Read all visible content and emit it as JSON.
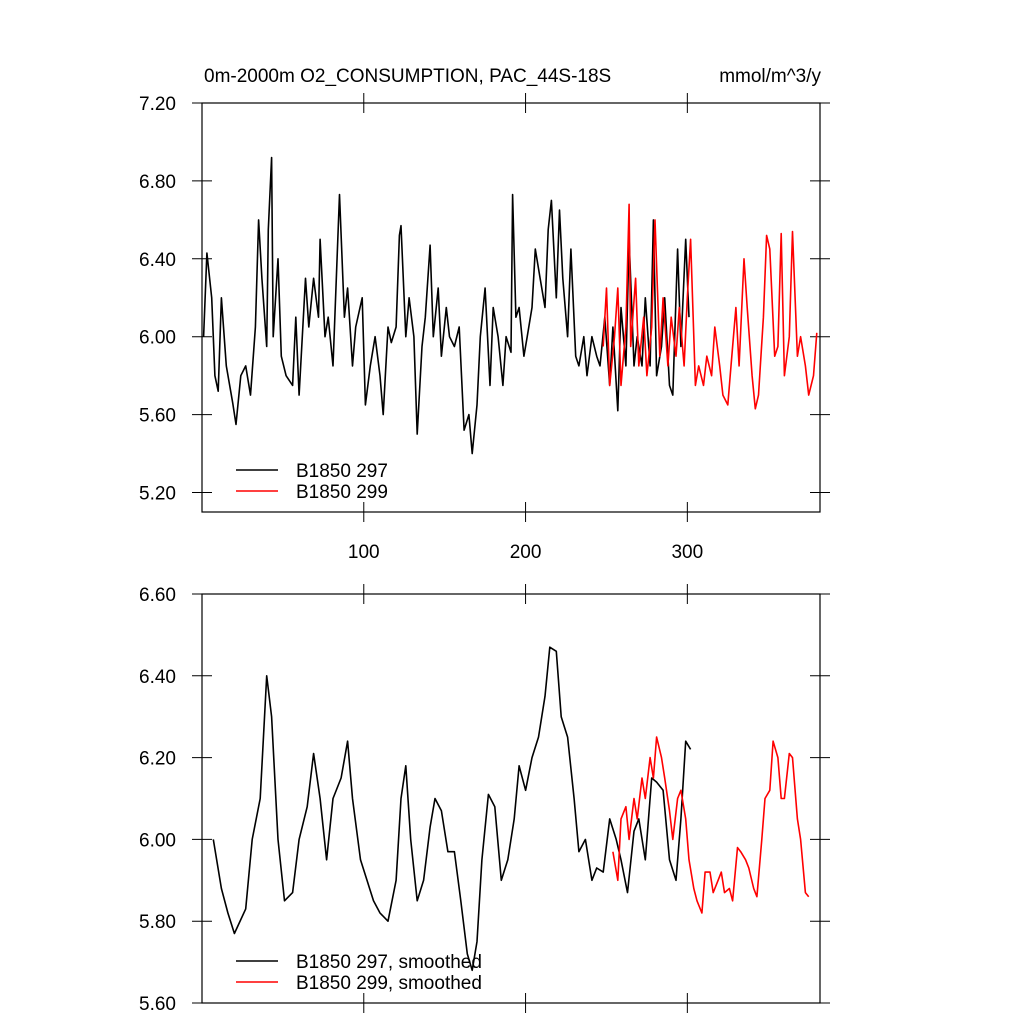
{
  "chart_data": [
    {
      "type": "line",
      "title": "0m-2000m O2_CONSUMPTION, PAC_44S-18S",
      "subtitle": "mmol/m^3/y",
      "xlim": [
        0,
        382
      ],
      "ylim": [
        5.1,
        7.2
      ],
      "xticks": [
        100,
        200,
        300
      ],
      "yticks": [
        {
          "value": 5.2,
          "label": "5.20"
        },
        {
          "value": 5.6,
          "label": "5.60"
        },
        {
          "value": 6.0,
          "label": "6.00"
        },
        {
          "value": 6.4,
          "label": "6.40"
        },
        {
          "value": 6.8,
          "label": "6.80"
        },
        {
          "value": 7.2,
          "label": "7.20"
        }
      ],
      "legend": "lower left",
      "series": [
        {
          "name": "B1850 297",
          "color": "#000000",
          "x": [
            1,
            3,
            6,
            8,
            10,
            12,
            15,
            19,
            21,
            24,
            27,
            30,
            33,
            35,
            37,
            40,
            41,
            43,
            44,
            47,
            49,
            52,
            56,
            58,
            60,
            64,
            66,
            69,
            72,
            73,
            76,
            78,
            81,
            85,
            88,
            90,
            93,
            95,
            99,
            101,
            104,
            107,
            110,
            112,
            115,
            117,
            120,
            122,
            123,
            126,
            128,
            131,
            133,
            136,
            138,
            141,
            143,
            146,
            148,
            151,
            153,
            156,
            159,
            162,
            165,
            167,
            170,
            172,
            175,
            178,
            180,
            183,
            186,
            188,
            191,
            192,
            194,
            196,
            199,
            201,
            204,
            206,
            209,
            212,
            214,
            216,
            219,
            221,
            223,
            226,
            228,
            231,
            233,
            236,
            238,
            241,
            244,
            246,
            249,
            252,
            254,
            257,
            259,
            262,
            264,
            267,
            269,
            272,
            274,
            277,
            279,
            281,
            284,
            286,
            289,
            291,
            294,
            296,
            299,
            301
          ],
          "values": [
            6.0,
            6.43,
            6.2,
            5.8,
            5.72,
            6.2,
            5.85,
            5.66,
            5.55,
            5.8,
            5.85,
            5.7,
            6.05,
            6.6,
            6.3,
            5.95,
            6.55,
            6.92,
            6.0,
            6.4,
            5.9,
            5.8,
            5.75,
            6.1,
            5.7,
            6.3,
            6.05,
            6.3,
            6.1,
            6.5,
            6.0,
            6.1,
            5.85,
            6.73,
            6.1,
            6.25,
            5.85,
            6.05,
            6.2,
            5.65,
            5.85,
            6.0,
            5.8,
            5.6,
            6.05,
            5.97,
            6.05,
            6.52,
            6.57,
            6.0,
            6.2,
            6.0,
            5.5,
            5.95,
            6.1,
            6.47,
            6.0,
            6.25,
            5.9,
            6.15,
            6.0,
            5.95,
            6.05,
            5.52,
            5.6,
            5.4,
            5.65,
            6.0,
            6.25,
            5.75,
            6.15,
            6.0,
            5.75,
            6.0,
            5.92,
            6.73,
            6.1,
            6.15,
            5.9,
            6.0,
            6.15,
            6.45,
            6.3,
            6.15,
            6.55,
            6.7,
            6.2,
            6.65,
            6.3,
            6.0,
            6.45,
            5.9,
            5.85,
            6.0,
            5.8,
            6.0,
            5.9,
            5.85,
            6.1,
            5.75,
            6.05,
            5.62,
            6.15,
            5.85,
            6.5,
            5.85,
            6.0,
            5.85,
            6.2,
            5.85,
            6.6,
            5.8,
            5.95,
            6.2,
            5.75,
            5.7,
            6.45,
            5.95,
            6.5,
            6.1
          ]
        },
        {
          "name": "B1850 299",
          "color": "#ff0000",
          "x": [
            248,
            250,
            252,
            255,
            257,
            259,
            262,
            264,
            265,
            268,
            270,
            273,
            275,
            278,
            280,
            283,
            285,
            288,
            290,
            293,
            295,
            298,
            300,
            302,
            305,
            307,
            310,
            312,
            315,
            317,
            320,
            322,
            325,
            327,
            330,
            332,
            335,
            337,
            340,
            342,
            344,
            347,
            349,
            351,
            354,
            356,
            358,
            360,
            363,
            365,
            368,
            370,
            373,
            375,
            378,
            380
          ],
          "values": [
            5.95,
            6.25,
            5.75,
            6.0,
            6.25,
            5.75,
            6.05,
            6.68,
            5.95,
            6.3,
            5.85,
            6.1,
            5.8,
            6.05,
            6.6,
            5.9,
            6.2,
            5.85,
            6.1,
            5.9,
            6.15,
            5.85,
            6.2,
            6.5,
            5.75,
            5.85,
            5.75,
            5.9,
            5.8,
            6.05,
            5.85,
            5.7,
            5.65,
            5.85,
            6.15,
            5.85,
            6.4,
            6.15,
            5.8,
            5.63,
            5.7,
            6.1,
            6.52,
            6.45,
            5.9,
            5.95,
            6.53,
            5.8,
            6.0,
            6.54,
            5.9,
            6.0,
            5.85,
            5.7,
            5.8,
            6.02
          ]
        }
      ]
    },
    {
      "type": "line",
      "xlim": [
        0,
        382
      ],
      "ylim": [
        5.6,
        6.6
      ],
      "xticks": [
        100,
        200,
        300
      ],
      "yticks": [
        {
          "value": 5.6,
          "label": "5.60"
        },
        {
          "value": 5.8,
          "label": "5.80"
        },
        {
          "value": 6.0,
          "label": "6.00"
        },
        {
          "value": 6.2,
          "label": "6.20"
        },
        {
          "value": 6.4,
          "label": "6.40"
        },
        {
          "value": 6.6,
          "label": "6.60"
        }
      ],
      "legend": "lower left",
      "series": [
        {
          "name": "B1850 297, smoothed",
          "color": "#000000",
          "x": [
            7,
            12,
            16,
            20,
            27,
            31,
            36,
            40,
            43,
            47,
            51,
            56,
            60,
            65,
            69,
            73,
            77,
            81,
            86,
            90,
            93,
            98,
            102,
            106,
            110,
            115,
            120,
            123,
            126,
            129,
            133,
            137,
            141,
            144,
            148,
            152,
            156,
            160,
            164,
            167,
            170,
            173,
            177,
            181,
            185,
            189,
            193,
            196,
            200,
            204,
            208,
            212,
            215,
            219,
            222,
            226,
            230,
            233,
            237,
            241,
            244,
            248,
            252,
            256,
            259,
            263,
            267,
            270,
            274,
            278,
            281,
            285,
            289,
            293,
            296,
            299,
            302
          ],
          "values": [
            6.0,
            5.88,
            5.82,
            5.77,
            5.83,
            6.0,
            6.1,
            6.4,
            6.3,
            6.0,
            5.85,
            5.87,
            6.0,
            6.08,
            6.21,
            6.1,
            5.95,
            6.1,
            6.15,
            6.24,
            6.1,
            5.95,
            5.9,
            5.85,
            5.82,
            5.8,
            5.9,
            6.1,
            6.18,
            6.0,
            5.85,
            5.9,
            6.03,
            6.1,
            6.07,
            5.97,
            5.97,
            5.85,
            5.72,
            5.68,
            5.75,
            5.95,
            6.11,
            6.08,
            5.9,
            5.95,
            6.05,
            6.18,
            6.12,
            6.2,
            6.25,
            6.35,
            6.47,
            6.46,
            6.3,
            6.25,
            6.1,
            5.97,
            6.0,
            5.9,
            5.93,
            5.92,
            6.05,
            6.0,
            5.95,
            5.87,
            6.02,
            6.05,
            5.95,
            6.15,
            6.14,
            6.12,
            5.95,
            5.9,
            6.05,
            6.24,
            6.22
          ]
        },
        {
          "name": "B1850 299, smoothed",
          "color": "#ff0000",
          "x": [
            254,
            257,
            259,
            262,
            264,
            267,
            269,
            272,
            274,
            277,
            279,
            281,
            284,
            286,
            289,
            291,
            294,
            296,
            299,
            301,
            304,
            306,
            309,
            311,
            314,
            316,
            319,
            321,
            323,
            326,
            328,
            331,
            333,
            336,
            338,
            341,
            343,
            346,
            348,
            351,
            353,
            356,
            358,
            360,
            363,
            365,
            368,
            370,
            373,
            375
          ],
          "values": [
            5.97,
            5.9,
            6.05,
            6.08,
            6.0,
            6.1,
            6.05,
            6.15,
            6.1,
            6.2,
            6.15,
            6.25,
            6.2,
            6.15,
            6.07,
            6.0,
            6.1,
            6.12,
            6.05,
            5.95,
            5.88,
            5.85,
            5.82,
            5.92,
            5.92,
            5.87,
            5.9,
            5.92,
            5.87,
            5.88,
            5.85,
            5.98,
            5.97,
            5.95,
            5.93,
            5.88,
            5.86,
            6.0,
            6.1,
            6.12,
            6.24,
            6.2,
            6.1,
            6.1,
            6.21,
            6.2,
            6.05,
            6.0,
            5.87,
            5.86
          ]
        }
      ]
    }
  ]
}
